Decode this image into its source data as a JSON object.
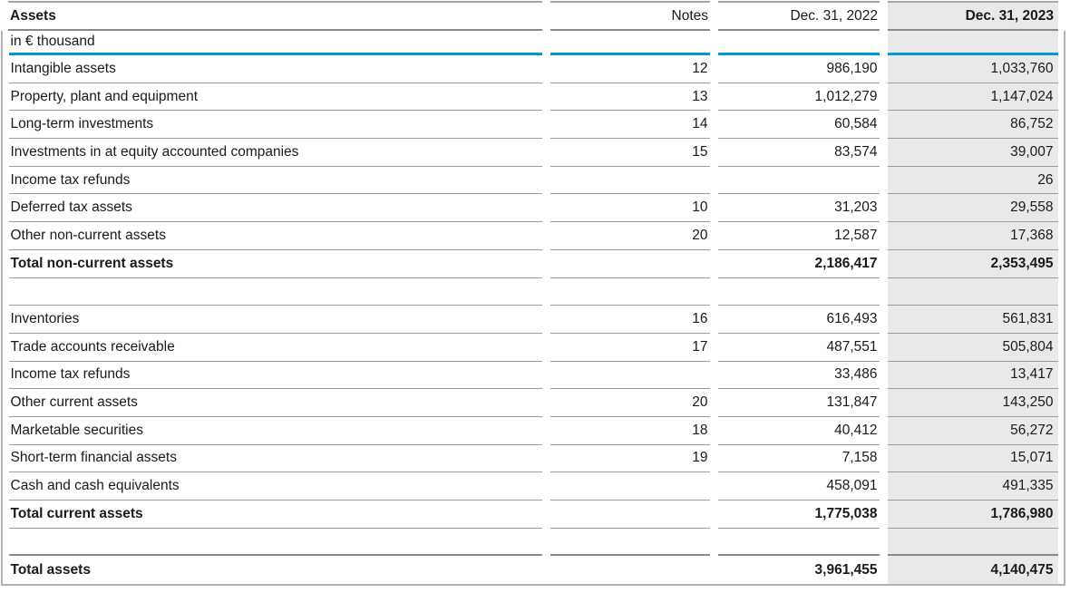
{
  "title": "Assets",
  "unit_label": "in € thousand",
  "header": {
    "assets": "Assets",
    "notes": "Notes",
    "col2022": "Dec. 31, 2022",
    "col2023": "Dec. 31, 2023"
  },
  "colors": {
    "accent_blue_rule": "#0099d8",
    "highlight_column_bg": "#e9e9e9",
    "row_border": "#9b9b9b",
    "heavy_border": "#8a8a8a",
    "outer_border": "#b2b2b2",
    "text": "#1a1a1a"
  },
  "table": {
    "rows": [
      {
        "type": "data",
        "label": "Intangible assets",
        "notes": "12",
        "v2022": "986,190",
        "v2023": "1,033,760"
      },
      {
        "type": "data",
        "label": "Property, plant and equipment",
        "notes": "13",
        "v2022": "1,012,279",
        "v2023": "1,147,024"
      },
      {
        "type": "data",
        "label": "Long-term investments",
        "notes": "14",
        "v2022": "60,584",
        "v2023": "86,752"
      },
      {
        "type": "data",
        "label": "Investments in at equity accounted companies",
        "notes": "15",
        "v2022": "83,574",
        "v2023": "39,007"
      },
      {
        "type": "data",
        "label": "Income tax refunds",
        "notes": "",
        "v2022": "",
        "v2023": "26"
      },
      {
        "type": "data",
        "label": "Deferred tax assets",
        "notes": "10",
        "v2022": "31,203",
        "v2023": "29,558"
      },
      {
        "type": "data",
        "label": "Other non-current assets",
        "notes": "20",
        "v2022": "12,587",
        "v2023": "17,368"
      },
      {
        "type": "data",
        "bold": true,
        "label": "Total non-current assets",
        "notes": "",
        "v2022": "2,186,417",
        "v2023": "2,353,495"
      },
      {
        "type": "spacer",
        "label": "",
        "notes": "",
        "v2022": "",
        "v2023": ""
      },
      {
        "type": "data",
        "label": "Inventories",
        "notes": "16",
        "v2022": "616,493",
        "v2023": "561,831"
      },
      {
        "type": "data",
        "label": "Trade accounts receivable",
        "notes": "17",
        "v2022": "487,551",
        "v2023": "505,804"
      },
      {
        "type": "data",
        "label": "Income tax refunds",
        "notes": "",
        "v2022": "33,486",
        "v2023": "13,417"
      },
      {
        "type": "data",
        "label": "Other current assets",
        "notes": "20",
        "v2022": "131,847",
        "v2023": "143,250"
      },
      {
        "type": "data",
        "label": "Marketable securities",
        "notes": "18",
        "v2022": "40,412",
        "v2023": "56,272"
      },
      {
        "type": "data",
        "label": "Short-term financial assets",
        "notes": "19",
        "v2022": "7,158",
        "v2023": "15,071"
      },
      {
        "type": "data",
        "label": "Cash and cash equivalents",
        "notes": "",
        "v2022": "458,091",
        "v2023": "491,335"
      },
      {
        "type": "data",
        "bold": true,
        "label": "Total current assets",
        "notes": "",
        "v2022": "1,775,038",
        "v2023": "1,786,980"
      },
      {
        "type": "spacer-heavy",
        "label": "",
        "notes": "",
        "v2022": "",
        "v2023": ""
      },
      {
        "type": "data",
        "bold": true,
        "last": true,
        "label": "Total assets",
        "notes": "",
        "v2022": "3,961,455",
        "v2023": "4,140,475"
      }
    ]
  }
}
